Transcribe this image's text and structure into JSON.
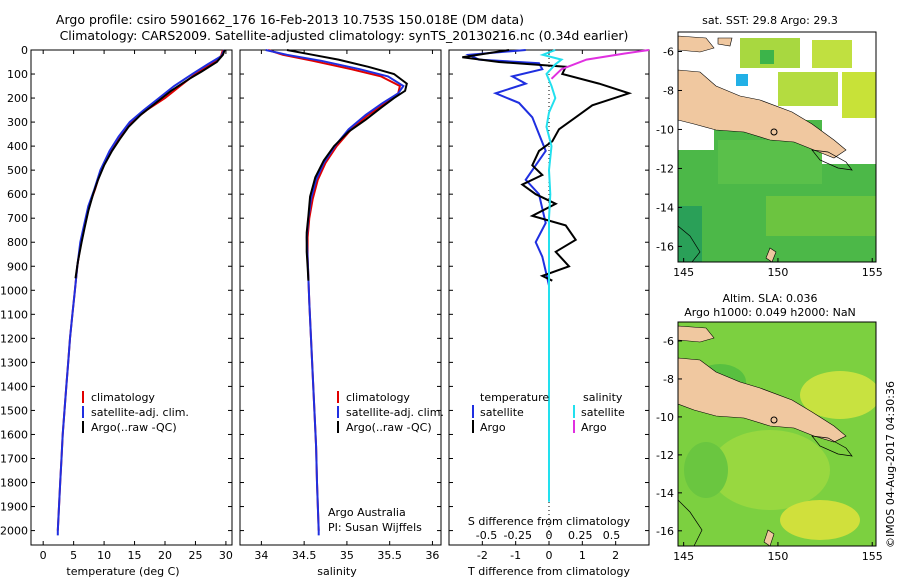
{
  "header": {
    "line1": "Argo profile: csiro 5901662_176 16-Feb-2013 10.753S 150.018E (DM data)",
    "line2": "Climatology: CARS2009. Satellite-adjusted climatology: synTS_20130216.nc (0.34d earlier)"
  },
  "colors": {
    "climatology": "#e00000",
    "satellite": "#1f2fe0",
    "argo": "#000000",
    "salinity_satellite": "#22e0ee",
    "salinity_argo": "#e030e0",
    "land": "#f0c8a0",
    "sea_green": "#3cb44a",
    "sea_yellow": "#d8e830",
    "missing": "#ffffff"
  },
  "footer": {
    "argo_australia": "Argo Australia",
    "pi": "PI: Susan Wijffels",
    "imos_stamp": "©IMOS 04-Aug-2017 04:30:36"
  },
  "chart_data": [
    {
      "id": "temperature",
      "type": "line",
      "xlabel": "temperature (deg C)",
      "xlim": [
        -2,
        31
      ],
      "xticks": [
        0,
        5,
        10,
        15,
        20,
        25,
        30
      ],
      "ylim": [
        0,
        2060
      ],
      "yticks": [
        0,
        100,
        200,
        300,
        400,
        500,
        600,
        700,
        800,
        900,
        1000,
        1100,
        1200,
        1300,
        1400,
        1500,
        1600,
        1700,
        1800,
        1900,
        2000
      ],
      "y_reversed": true,
      "legend": [
        "climatology",
        "satellite-adj. clim.",
        "Argo(..raw -QC)"
      ],
      "series": [
        {
          "name": "climatology",
          "color": "#e00000",
          "points": [
            [
              29.5,
              0
            ],
            [
              29.2,
              25
            ],
            [
              27.5,
              60
            ],
            [
              25,
              100
            ],
            [
              22.5,
              150
            ],
            [
              20,
              200
            ],
            [
              17,
              250
            ],
            [
              14.5,
              300
            ],
            [
              12.5,
              360
            ],
            [
              11,
              420
            ],
            [
              9.5,
              500
            ],
            [
              8.5,
              580
            ],
            [
              7.5,
              650
            ],
            [
              6.8,
              730
            ],
            [
              6.2,
              800
            ],
            [
              5.6,
              900
            ],
            [
              5.2,
              1000
            ],
            [
              4.8,
              1100
            ],
            [
              4.4,
              1200
            ],
            [
              4.1,
              1300
            ],
            [
              3.8,
              1400
            ],
            [
              3.5,
              1500
            ],
            [
              3.2,
              1600
            ],
            [
              3.0,
              1700
            ],
            [
              2.8,
              1800
            ],
            [
              2.6,
              1900
            ],
            [
              2.4,
              2000
            ]
          ]
        },
        {
          "name": "satellite",
          "color": "#1f2fe0",
          "points": [
            [
              29.7,
              0
            ],
            [
              29.3,
              25
            ],
            [
              27,
              60
            ],
            [
              24.5,
              100
            ],
            [
              21.5,
              150
            ],
            [
              19,
              200
            ],
            [
              16.5,
              250
            ],
            [
              14.2,
              300
            ],
            [
              12.4,
              360
            ],
            [
              10.9,
              420
            ],
            [
              9.4,
              500
            ],
            [
              8.4,
              580
            ],
            [
              7.4,
              650
            ],
            [
              6.7,
              730
            ],
            [
              6.1,
              800
            ],
            [
              5.6,
              900
            ],
            [
              5.2,
              1000
            ],
            [
              4.8,
              1100
            ],
            [
              4.4,
              1200
            ],
            [
              4.1,
              1300
            ],
            [
              3.8,
              1400
            ],
            [
              3.5,
              1500
            ],
            [
              3.2,
              1600
            ],
            [
              3.0,
              1700
            ],
            [
              2.8,
              1800
            ],
            [
              2.6,
              1900
            ],
            [
              2.4,
              2000
            ],
            [
              2.4,
              2020
            ]
          ]
        },
        {
          "name": "argo",
          "color": "#000000",
          "points": [
            [
              29.8,
              0
            ],
            [
              29.5,
              20
            ],
            [
              28.5,
              50
            ],
            [
              26,
              90
            ],
            [
              24,
              120
            ],
            [
              21,
              170
            ],
            [
              18.5,
              220
            ],
            [
              16,
              270
            ],
            [
              14,
              320
            ],
            [
              12.6,
              370
            ],
            [
              11.3,
              420
            ],
            [
              10,
              480
            ],
            [
              9,
              540
            ],
            [
              8.2,
              600
            ],
            [
              7.4,
              670
            ],
            [
              6.8,
              740
            ],
            [
              6.3,
              800
            ],
            [
              5.7,
              880
            ],
            [
              5.3,
              950
            ]
          ]
        }
      ]
    },
    {
      "id": "salinity",
      "type": "line",
      "xlabel": "salinity",
      "xlim": [
        33.75,
        36.1
      ],
      "xticks": [
        34,
        34.5,
        35,
        35.5,
        36
      ],
      "ylim": [
        0,
        2060
      ],
      "y_reversed": true,
      "legend": [
        "climatology",
        "satellite-adj. clim.",
        "Argo(..raw -QC)"
      ],
      "series": [
        {
          "name": "climatology",
          "color": "#e00000",
          "points": [
            [
              34.08,
              0
            ],
            [
              34.25,
              20
            ],
            [
              34.6,
              45
            ],
            [
              35.05,
              80
            ],
            [
              35.4,
              110
            ],
            [
              35.62,
              150
            ],
            [
              35.6,
              180
            ],
            [
              35.45,
              220
            ],
            [
              35.25,
              270
            ],
            [
              35.05,
              330
            ],
            [
              34.88,
              400
            ],
            [
              34.75,
              470
            ],
            [
              34.66,
              540
            ],
            [
              34.6,
              620
            ],
            [
              34.56,
              700
            ],
            [
              34.54,
              780
            ],
            [
              34.54,
              860
            ],
            [
              34.55,
              950
            ],
            [
              34.56,
              1050
            ],
            [
              34.58,
              1200
            ],
            [
              34.6,
              1350
            ],
            [
              34.62,
              1500
            ],
            [
              34.64,
              1650
            ],
            [
              34.65,
              1800
            ],
            [
              34.67,
              2000
            ]
          ]
        },
        {
          "name": "satellite",
          "color": "#1f2fe0",
          "points": [
            [
              34.05,
              0
            ],
            [
              34.3,
              20
            ],
            [
              34.7,
              45
            ],
            [
              35.15,
              80
            ],
            [
              35.48,
              110
            ],
            [
              35.66,
              150
            ],
            [
              35.6,
              180
            ],
            [
              35.42,
              220
            ],
            [
              35.22,
              270
            ],
            [
              35.02,
              330
            ],
            [
              34.86,
              400
            ],
            [
              34.73,
              470
            ],
            [
              34.64,
              540
            ],
            [
              34.58,
              620
            ],
            [
              34.55,
              700
            ],
            [
              34.53,
              780
            ],
            [
              34.54,
              860
            ],
            [
              34.55,
              950
            ],
            [
              34.56,
              1050
            ],
            [
              34.58,
              1200
            ],
            [
              34.6,
              1350
            ],
            [
              34.62,
              1500
            ],
            [
              34.64,
              1650
            ],
            [
              34.65,
              1800
            ],
            [
              34.67,
              2000
            ],
            [
              34.67,
              2020
            ]
          ]
        },
        {
          "name": "argo",
          "color": "#000000",
          "points": [
            [
              34.3,
              0
            ],
            [
              34.6,
              20
            ],
            [
              34.9,
              40
            ],
            [
              35.25,
              70
            ],
            [
              35.55,
              100
            ],
            [
              35.7,
              140
            ],
            [
              35.68,
              170
            ],
            [
              35.55,
              200
            ],
            [
              35.4,
              240
            ],
            [
              35.22,
              290
            ],
            [
              35.02,
              340
            ],
            [
              34.85,
              400
            ],
            [
              34.73,
              460
            ],
            [
              34.63,
              530
            ],
            [
              34.57,
              610
            ],
            [
              34.55,
              690
            ],
            [
              34.53,
              760
            ],
            [
              34.53,
              840
            ],
            [
              34.54,
              900
            ],
            [
              34.55,
              960
            ]
          ]
        }
      ]
    },
    {
      "id": "differences",
      "type": "line",
      "legend_temperature_heading": "temperature",
      "legend_salinity_heading": "salinity",
      "legend": [
        "satellite",
        "Argo",
        "satellite",
        "Argo"
      ],
      "title_s_axis": "S difference from climatology",
      "s_ticks": [
        "-0.5",
        "-0.25",
        "0",
        "0.25",
        "0.5"
      ],
      "s_tick_values": [
        -0.5,
        -0.25,
        0,
        0.25,
        0.5
      ],
      "s_lim": [
        -0.8,
        0.8
      ],
      "xlabel": "T difference from climatology",
      "xticks": [
        -2,
        -1,
        0,
        1,
        2
      ],
      "xlim": [
        -3,
        3
      ],
      "ylim": [
        0,
        2060
      ],
      "y_reversed": true,
      "series": [
        {
          "name": "T satellite",
          "color": "#1f2fe0",
          "points": [
            [
              -0.7,
              0
            ],
            [
              -2.4,
              20
            ],
            [
              -2.1,
              40
            ],
            [
              -0.3,
              55
            ],
            [
              -0.2,
              80
            ],
            [
              -1.1,
              110
            ],
            [
              -0.7,
              140
            ],
            [
              -1.6,
              180
            ],
            [
              -0.9,
              220
            ],
            [
              -0.5,
              280
            ],
            [
              -0.3,
              350
            ],
            [
              -0.1,
              420
            ],
            [
              -0.4,
              480
            ],
            [
              -0.7,
              540
            ],
            [
              -0.3,
              600
            ],
            [
              -0.2,
              660
            ],
            [
              -0.1,
              720
            ],
            [
              -0.4,
              800
            ],
            [
              -0.2,
              860
            ],
            [
              -0.1,
              920
            ],
            [
              0,
              980
            ],
            [
              0,
              1400
            ],
            [
              0,
              1700
            ]
          ]
        },
        {
          "name": "T argo",
          "color": "#000000",
          "points": [
            [
              -1.2,
              0
            ],
            [
              -2.6,
              30
            ],
            [
              -1.5,
              50
            ],
            [
              0.5,
              70
            ],
            [
              0.4,
              100
            ],
            [
              1.5,
              140
            ],
            [
              2.4,
              180
            ],
            [
              1.3,
              230
            ],
            [
              0.8,
              280
            ],
            [
              0.3,
              330
            ],
            [
              0.1,
              380
            ],
            [
              -0.3,
              420
            ],
            [
              -0.5,
              480
            ],
            [
              -0.2,
              520
            ],
            [
              -0.8,
              560
            ],
            [
              -0.4,
              600
            ],
            [
              0.2,
              640
            ],
            [
              -0.5,
              690
            ],
            [
              0.5,
              730
            ],
            [
              0.8,
              790
            ],
            [
              0.2,
              840
            ],
            [
              0.6,
              900
            ],
            [
              -0.2,
              940
            ],
            [
              0.1,
              960
            ]
          ]
        },
        {
          "name": "S satellite",
          "color": "#22e0ee",
          "points": [
            [
              0.05,
              0
            ],
            [
              -0.05,
              20
            ],
            [
              0.1,
              40
            ],
            [
              0.05,
              60
            ],
            [
              -0.02,
              100
            ],
            [
              0.02,
              150
            ],
            [
              0.05,
              200
            ],
            [
              0.0,
              260
            ],
            [
              -0.02,
              320
            ],
            [
              0.02,
              400
            ],
            [
              0.0,
              500
            ],
            [
              0.01,
              600
            ],
            [
              0,
              700
            ],
            [
              0,
              900
            ],
            [
              0,
              1200
            ],
            [
              0,
              1500
            ],
            [
              0,
              1800
            ],
            [
              0,
              1880
            ]
          ]
        },
        {
          "name": "S argo",
          "color": "#e030e0",
          "points": [
            [
              0.8,
              0
            ],
            [
              0.6,
              15
            ],
            [
              0.3,
              40
            ],
            [
              0.1,
              80
            ],
            [
              0.02,
              120
            ]
          ]
        }
      ]
    },
    {
      "id": "map_sst",
      "type": "heatmap",
      "title": "sat. SST: 29.8  Argo: 29.3",
      "xticks": [
        145,
        150,
        155
      ],
      "yticks": [
        -6,
        -8,
        -10,
        -12,
        -14,
        -16
      ]
    },
    {
      "id": "map_sla",
      "type": "heatmap",
      "title_line1": "Altim. SLA: 0.036",
      "title_line2": "Argo h1000: 0.049 h2000: NaN",
      "xticks": [
        145,
        150,
        155
      ],
      "yticks": [
        -6,
        -8,
        -10,
        -12,
        -14,
        -16
      ]
    }
  ]
}
